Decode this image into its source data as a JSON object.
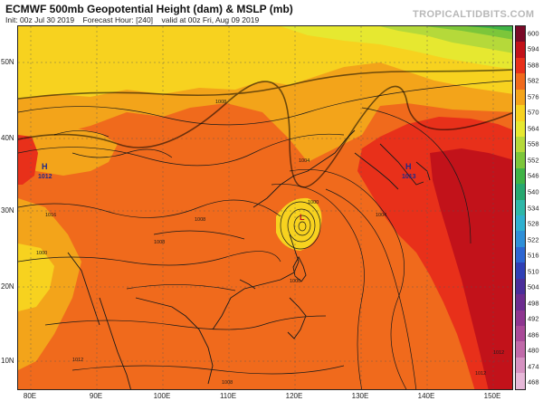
{
  "header": {
    "title": "ECMWF 500mb Geopotential Height (dam) & MSLP (mb)",
    "init": "Init: 00z Jul 30 2019",
    "forecast_hour": "Forecast Hour: [240]",
    "valid": "valid at 00z Fri, Aug 09 2019",
    "brand": "TROPICALTIDBITS.COM"
  },
  "lat_labels": [
    "50N",
    "40N",
    "30N",
    "20N",
    "10N"
  ],
  "lon_labels": [
    "80E",
    "90E",
    "100E",
    "110E",
    "120E",
    "130E",
    "140E",
    "150E"
  ],
  "colorbar": {
    "ticks": [
      "600",
      "594",
      "588",
      "582",
      "576",
      "570",
      "564",
      "558",
      "552",
      "546",
      "540",
      "534",
      "528",
      "522",
      "516",
      "510",
      "504",
      "498",
      "492",
      "486",
      "480",
      "474",
      "468"
    ],
    "colors": [
      "#7a0a28",
      "#c2121a",
      "#e8301a",
      "#f06a1c",
      "#f3a41a",
      "#f7d21f",
      "#e6e830",
      "#b5d93a",
      "#7cc63a",
      "#3fb346",
      "#27a870",
      "#2eb7a8",
      "#2fb0cf",
      "#2e8fd8",
      "#2c66d2",
      "#2f3fb5",
      "#4a2e9a",
      "#6c2d8f",
      "#8e3690",
      "#a94a98",
      "#c06aa9",
      "#d592c1",
      "#e6b8d8"
    ]
  },
  "isobar_labels": [
    "1008",
    "1008",
    "1004",
    "1000",
    "1004",
    "1008",
    "1000",
    "1012",
    "1012",
    "1008",
    "1012",
    "1016",
    "1000"
  ],
  "pressure_centers": {
    "low_china": "L",
    "high_japan": "H",
    "high_tibet": "H",
    "h_value_japan": "1013",
    "h_value_tibet": "1012"
  }
}
